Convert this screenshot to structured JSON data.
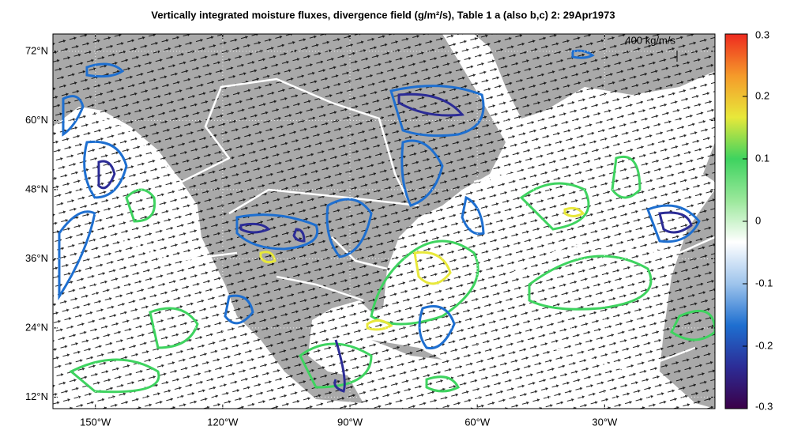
{
  "map": {
    "title": "Vertically integrated moisture fluxes, divergence field (g/m²/s), Table 1 a (also b,c) 2: 29Apr1973",
    "xlim": [
      -160,
      -4
    ],
    "ylim": [
      10,
      75
    ],
    "lat_ticks": [
      {
        "value": 72,
        "label": "72°N"
      },
      {
        "value": 60,
        "label": "60°N"
      },
      {
        "value": 48,
        "label": "48°N"
      },
      {
        "value": 36,
        "label": "36°N"
      },
      {
        "value": 24,
        "label": "24°N"
      },
      {
        "value": 12,
        "label": "12°N"
      }
    ],
    "lon_ticks": [
      {
        "value": -150,
        "label": "150°W"
      },
      {
        "value": -120,
        "label": "120°W"
      },
      {
        "value": -90,
        "label": "90°W"
      },
      {
        "value": -60,
        "label": "60°W"
      },
      {
        "value": -30,
        "label": "30°W"
      }
    ],
    "reference_vector": "400  kg/m/s",
    "colorbar": {
      "lim": [
        -0.3,
        0.3
      ],
      "ticks": [
        0.3,
        0.2,
        0.1,
        0,
        -0.1,
        -0.2,
        -0.3
      ],
      "colormap": [
        "#3b0048",
        "#2c2c96",
        "#1e6fd0",
        "#9ec4ec",
        "#ffffff",
        "#9be89b",
        "#3ed35f",
        "#e8e83a",
        "#f59a2a",
        "#ee2a1f"
      ]
    }
  }
}
